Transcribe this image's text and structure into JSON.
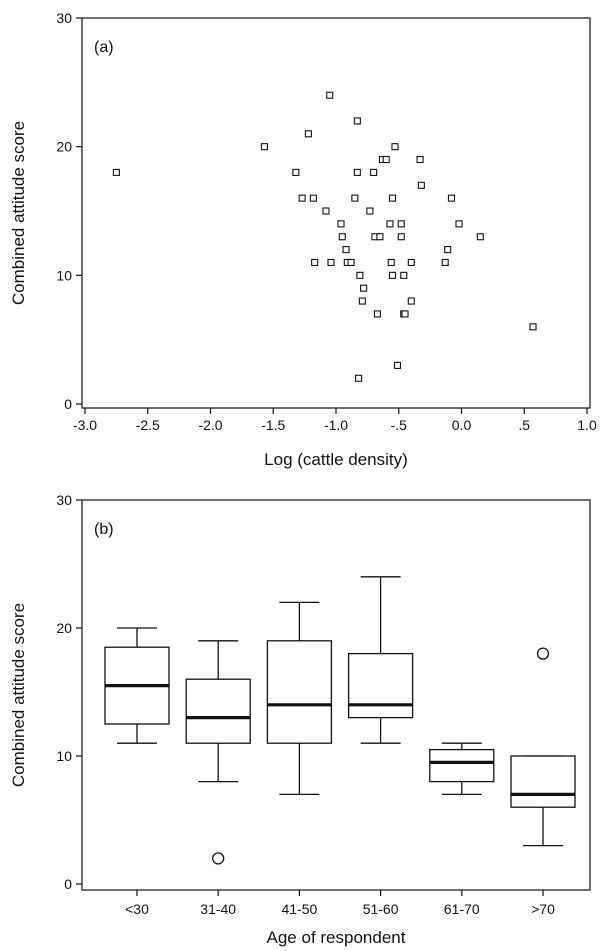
{
  "chart_data": [
    {
      "type": "scatter",
      "panel_label": "(a)",
      "xlabel": "Log (cattle density)",
      "ylabel": "Combined attitude score",
      "xlim": [
        -3.0,
        1.0
      ],
      "ylim": [
        0,
        30
      ],
      "xticks": [
        "-3.0",
        "-2.5",
        "-2.0",
        "-1.5",
        "-1.0",
        "-.5",
        "0.0",
        ".5",
        "1.0"
      ],
      "yticks": [
        "0",
        "10",
        "20",
        "30"
      ],
      "marker": "open-square",
      "grid": false,
      "points": [
        [
          -2.75,
          18
        ],
        [
          -1.57,
          20
        ],
        [
          -1.32,
          18
        ],
        [
          -1.27,
          16
        ],
        [
          -1.22,
          21
        ],
        [
          -1.18,
          16
        ],
        [
          -1.17,
          11
        ],
        [
          -1.08,
          15
        ],
        [
          -1.05,
          24
        ],
        [
          -1.04,
          11
        ],
        [
          -0.96,
          14
        ],
        [
          -0.95,
          13
        ],
        [
          -0.92,
          12
        ],
        [
          -0.91,
          11
        ],
        [
          -0.88,
          11
        ],
        [
          -0.85,
          16
        ],
        [
          -0.83,
          22
        ],
        [
          -0.83,
          18
        ],
        [
          -0.81,
          10
        ],
        [
          -0.82,
          2
        ],
        [
          -0.79,
          8
        ],
        [
          -0.78,
          9
        ],
        [
          -0.73,
          15
        ],
        [
          -0.7,
          18
        ],
        [
          -0.69,
          13
        ],
        [
          -0.67,
          7
        ],
        [
          -0.65,
          13
        ],
        [
          -0.63,
          19
        ],
        [
          -0.6,
          19
        ],
        [
          -0.57,
          14
        ],
        [
          -0.56,
          11
        ],
        [
          -0.55,
          10
        ],
        [
          -0.55,
          16
        ],
        [
          -0.53,
          20
        ],
        [
          -0.51,
          3
        ],
        [
          -0.48,
          14
        ],
        [
          -0.48,
          13
        ],
        [
          -0.46,
          10
        ],
        [
          -0.46,
          7
        ],
        [
          -0.45,
          7
        ],
        [
          -0.4,
          11
        ],
        [
          -0.4,
          8
        ],
        [
          -0.33,
          19
        ],
        [
          -0.32,
          17
        ],
        [
          -0.13,
          11
        ],
        [
          -0.11,
          12
        ],
        [
          -0.08,
          16
        ],
        [
          -0.02,
          14
        ],
        [
          0.15,
          13
        ],
        [
          0.57,
          6
        ]
      ]
    },
    {
      "type": "box",
      "panel_label": "(b)",
      "xlabel": "Age of respondent",
      "ylabel": "Combined attitude score",
      "ylim": [
        0,
        30
      ],
      "yticks": [
        "0",
        "10",
        "20",
        "30"
      ],
      "grid": false,
      "categories": [
        "<30",
        "31-40",
        "41-50",
        "51-60",
        "61-70",
        ">70"
      ],
      "boxes": [
        {
          "whisker_low": 11,
          "q1": 12.5,
          "median": 15.5,
          "q3": 18.5,
          "whisker_high": 20,
          "outliers": []
        },
        {
          "whisker_low": 8,
          "q1": 11,
          "median": 13,
          "q3": 16,
          "whisker_high": 19,
          "outliers": [
            2
          ]
        },
        {
          "whisker_low": 7,
          "q1": 11,
          "median": 14,
          "q3": 19,
          "whisker_high": 22,
          "outliers": []
        },
        {
          "whisker_low": 11,
          "q1": 13,
          "median": 14,
          "q3": 18,
          "whisker_high": 24,
          "outliers": []
        },
        {
          "whisker_low": 7,
          "q1": 8,
          "median": 9.5,
          "q3": 10.5,
          "whisker_high": 11,
          "outliers": []
        },
        {
          "whisker_low": 3,
          "q1": 6,
          "median": 7,
          "q3": 10,
          "whisker_high": 10,
          "outliers": [
            18
          ]
        }
      ]
    }
  ]
}
